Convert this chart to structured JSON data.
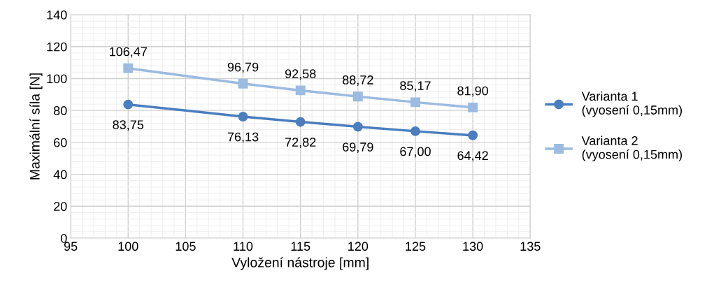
{
  "chart_data": {
    "type": "line",
    "xlabel": "Vyložení nástroje [mm]",
    "ylabel": "Maximální síla [N]",
    "x": [
      100,
      110,
      115,
      120,
      125,
      130
    ],
    "series": [
      {
        "name": "Varianta 1\n(vyosení 0,15mm)",
        "color": "#4a7ebf",
        "marker": "circle",
        "values": [
          83.75,
          76.13,
          72.82,
          69.79,
          67.0,
          64.42
        ],
        "value_labels": [
          "83,75",
          "76,13",
          "72,82",
          "69,79",
          "67,00",
          "64,42"
        ]
      },
      {
        "name": "Varianta 2\n(vyosení 0,15mm)",
        "color": "#9bbbe0",
        "marker": "square",
        "values": [
          106.47,
          96.79,
          92.58,
          88.72,
          85.17,
          81.9
        ],
        "value_labels": [
          "106,47",
          "96,79",
          "92,58",
          "88,72",
          "85,17",
          "81,90"
        ]
      }
    ],
    "xlim": [
      95,
      135
    ],
    "xticks": [
      95,
      100,
      105,
      110,
      115,
      120,
      125,
      130,
      135
    ],
    "ylim": [
      0,
      140
    ],
    "yticks": [
      0,
      20,
      40,
      60,
      80,
      100,
      120,
      140
    ],
    "grid": true,
    "legend": "right",
    "line_style": "solid"
  }
}
